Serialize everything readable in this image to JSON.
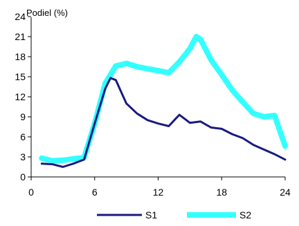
{
  "chart_data": {
    "type": "line",
    "ylabel": "Podiel (%)",
    "xlabel": "",
    "xlim": [
      0,
      24
    ],
    "ylim": [
      0,
      24
    ],
    "x_ticks": [
      "0",
      "6",
      "12",
      "18",
      "24"
    ],
    "y_ticks": [
      "0",
      "3",
      "6",
      "9",
      "12",
      "15",
      "18",
      "21",
      "24"
    ],
    "grid": false,
    "legend_position": "bottom",
    "series": [
      {
        "name": "S1",
        "color": "#1a1a80",
        "x": [
          1,
          2,
          3,
          4,
          5,
          6,
          7,
          7.5,
          8,
          9,
          10,
          11,
          12,
          13,
          14,
          15,
          16,
          17,
          18,
          19,
          20,
          21,
          22,
          23,
          24
        ],
        "y": [
          2.0,
          1.9,
          1.5,
          2.0,
          2.6,
          8.0,
          13.2,
          14.8,
          14.5,
          11.0,
          9.5,
          8.5,
          8.0,
          7.6,
          9.3,
          8.1,
          8.3,
          7.4,
          7.2,
          6.4,
          5.8,
          4.8,
          4.1,
          3.4,
          2.6
        ]
      },
      {
        "name": "S2",
        "color": "#33ffff",
        "x": [
          1,
          2,
          3,
          4,
          5,
          6,
          7,
          8,
          9,
          10,
          11,
          12,
          13,
          14,
          15,
          15.6,
          16,
          17,
          18,
          19,
          20,
          21,
          22,
          23,
          24
        ],
        "y": [
          2.8,
          2.4,
          2.5,
          2.7,
          2.9,
          8.0,
          14.0,
          16.6,
          17.0,
          16.5,
          16.2,
          15.9,
          15.6,
          17.2,
          19.2,
          21.0,
          20.6,
          17.5,
          15.3,
          13.0,
          11.2,
          9.5,
          9.0,
          9.2,
          4.6
        ]
      }
    ]
  }
}
